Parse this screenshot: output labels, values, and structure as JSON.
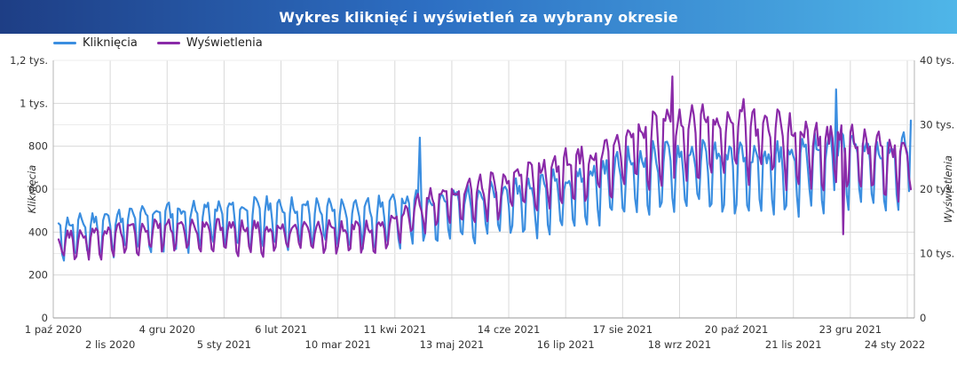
{
  "chart_data": {
    "type": "line",
    "title": "Wykres kliknięć i wyświetleń za wybrany okresie",
    "ylabel_left": "Kliknięcia",
    "ylabel_right": "Wyświetlenia",
    "ylim_left": [
      0,
      1200
    ],
    "ylim_right": [
      0,
      40000
    ],
    "left_tick_labels": [
      "0",
      "200",
      "400",
      "600",
      "800",
      "1 tys.",
      "1,2 tys."
    ],
    "right_tick_labels": [
      "0",
      "10 tys.",
      "20 tys.",
      "30 tys.",
      "40 tys."
    ],
    "x_ticks": [
      {
        "label": "1 paź 2020",
        "day": 0,
        "row": 0
      },
      {
        "label": "2 lis 2020",
        "day": 32,
        "row": 1
      },
      {
        "label": "4 gru 2020",
        "day": 64,
        "row": 0
      },
      {
        "label": "5 sty 2021",
        "day": 96,
        "row": 1
      },
      {
        "label": "6 lut 2021",
        "day": 128,
        "row": 0
      },
      {
        "label": "10 mar 2021",
        "day": 160,
        "row": 1
      },
      {
        "label": "11 kwi 2021",
        "day": 192,
        "row": 0
      },
      {
        "label": "13 maj 2021",
        "day": 224,
        "row": 1
      },
      {
        "label": "14 cze 2021",
        "day": 256,
        "row": 0
      },
      {
        "label": "16 lip 2021",
        "day": 288,
        "row": 1
      },
      {
        "label": "17 sie 2021",
        "day": 320,
        "row": 0
      },
      {
        "label": "18 wrz 2021",
        "day": 352,
        "row": 1
      },
      {
        "label": "20 paź 2021",
        "day": 384,
        "row": 0
      },
      {
        "label": "21 lis 2021",
        "day": 416,
        "row": 1
      },
      {
        "label": "23 gru 2021",
        "day": 448,
        "row": 0
      },
      {
        "label": "24 sty 2022",
        "day": 480,
        "row": 1
      }
    ],
    "x_range_days": [
      0,
      484
    ],
    "series": [
      {
        "name": "Kliknięcia",
        "axis": "left",
        "color": "#3b8ee0",
        "trend_days": [
          0,
          60,
          120,
          180,
          210,
          260,
          300,
          330,
          360,
          400,
          440,
          470,
          484
        ],
        "trend_values": [
          390,
          450,
          470,
          470,
          500,
          540,
          610,
          680,
          700,
          670,
          740,
          710,
          760
        ],
        "weekly_amplitude": 0.17,
        "notable_peaks": [
          {
            "day": 206,
            "value": 840
          },
          {
            "day": 440,
            "value": 1065
          },
          {
            "day": 482,
            "value": 920
          }
        ]
      },
      {
        "name": "Wyświetlenia",
        "axis": "right",
        "color": "#8a2aa8",
        "trend_days": [
          0,
          60,
          120,
          180,
          210,
          260,
          300,
          330,
          360,
          400,
          440,
          470,
          484
        ],
        "trend_values": [
          11500,
          13500,
          13000,
          13000,
          17500,
          20500,
          23500,
          27000,
          28500,
          28000,
          26000,
          24500,
          24500
        ],
        "weekly_amplitude": 0.13,
        "notable_peaks": [
          {
            "day": 348,
            "value": 37500
          },
          {
            "day": 388,
            "value": 34000
          },
          {
            "day": 444,
            "value": 13000
          }
        ]
      }
    ]
  },
  "colors": {
    "clicks": "#3b8ee0",
    "views": "#8a2aa8",
    "grid": "#d9d9d9",
    "title_gradient_start": "#1e3e85",
    "title_gradient_end": "#4fb6e8"
  }
}
